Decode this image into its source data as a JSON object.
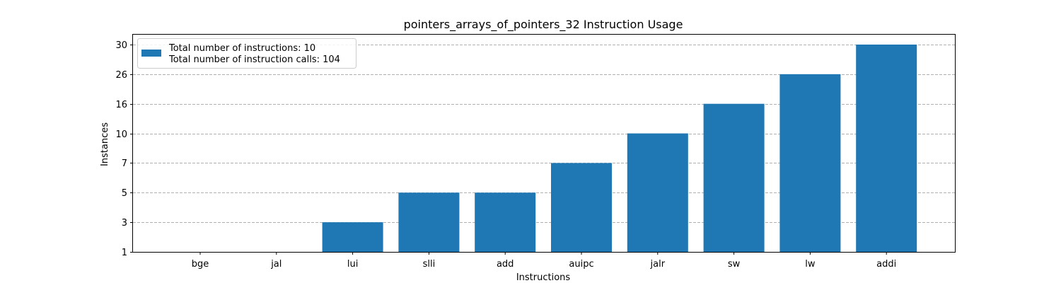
{
  "chart_data": {
    "type": "bar",
    "title": "pointers_arrays_of_pointers_32 Instruction Usage",
    "xlabel": "Instructions",
    "ylabel": "Instances",
    "categories": [
      "bge",
      "jal",
      "lui",
      "slli",
      "add",
      "auipc",
      "jalr",
      "sw",
      "lw",
      "addi"
    ],
    "values": [
      1,
      1,
      3,
      5,
      5,
      7,
      10,
      16,
      26,
      30
    ],
    "yticks": [
      1,
      3,
      5,
      7,
      10,
      16,
      26,
      30
    ],
    "ylim": [
      1,
      30
    ],
    "y_scale": "categorical ticks (evenly spaced)",
    "grid": "horizontal dashed",
    "legend": {
      "position": "top-left",
      "lines": [
        "Total number of instructions: 10",
        "Total number of instruction calls: 104"
      ]
    },
    "bar_color": "#1f77b4"
  }
}
